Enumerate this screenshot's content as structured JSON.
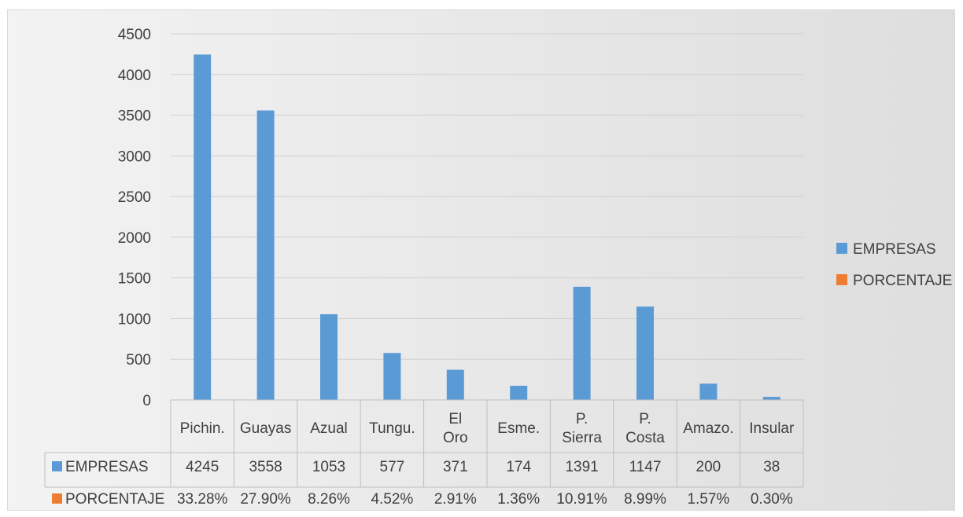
{
  "chart_data": {
    "type": "bar",
    "title": "",
    "xlabel": "",
    "ylabel": "",
    "ylim": [
      0,
      4500
    ],
    "yticks": [
      0,
      500,
      1000,
      1500,
      2000,
      2500,
      3000,
      3500,
      4000,
      4500
    ],
    "grid": true,
    "legend_position": "right",
    "categories": [
      "Pichin.",
      "Guayas",
      "Azual",
      "Tungu.",
      "El Oro",
      "Esme.",
      "P. Sierra",
      "P. Costa",
      "Amazo.",
      "Insular"
    ],
    "series": [
      {
        "name": "EMPRESAS",
        "color": "#5b9bd5",
        "values": [
          4245,
          3558,
          1053,
          577,
          371,
          174,
          1391,
          1147,
          200,
          38
        ],
        "labels": [
          "4245",
          "3558",
          "1053",
          "577",
          "371",
          "174",
          "1391",
          "1147",
          "200",
          "38"
        ]
      },
      {
        "name": "PORCENTAJE",
        "color": "#ed7d31",
        "values": [
          33.28,
          27.9,
          8.26,
          4.52,
          2.91,
          1.36,
          10.91,
          8.99,
          1.57,
          0.3
        ],
        "labels": [
          "33.28%",
          "27.90%",
          "8.26%",
          "4.52%",
          "2.91%",
          "1.36%",
          "10.91%",
          "8.99%",
          "1.57%",
          "0.30%"
        ]
      }
    ],
    "data_table": true
  }
}
